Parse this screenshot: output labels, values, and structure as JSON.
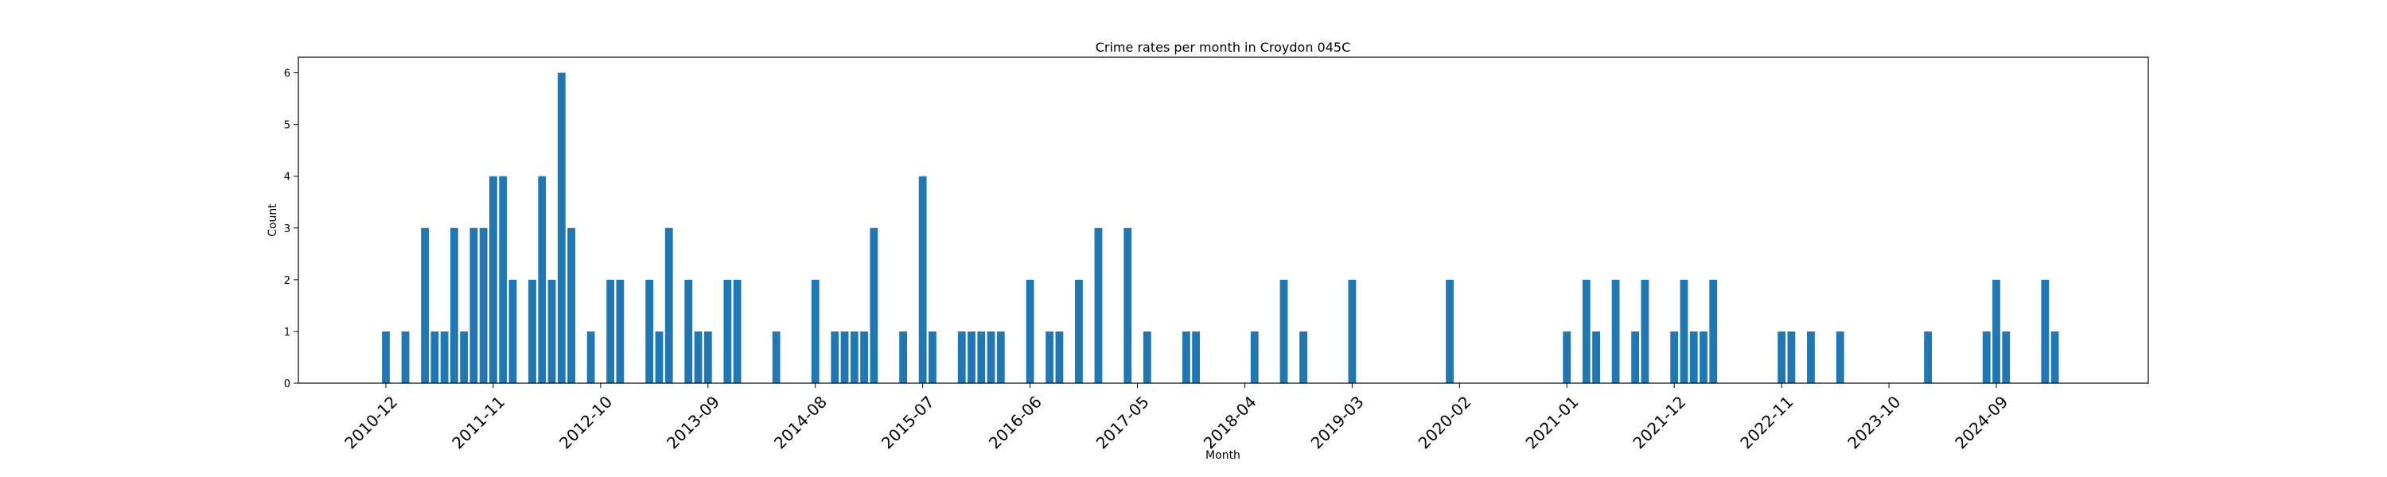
{
  "chart_data": {
    "type": "bar",
    "title": "Crime rates per month in Croydon 045C",
    "xlabel": "Month",
    "ylabel": "Count",
    "ylim": [
      0,
      6.3
    ],
    "y_ticks": [
      0,
      1,
      2,
      3,
      4,
      5,
      6
    ],
    "x_tick_labels": [
      "2010-12",
      "2011-11",
      "2012-10",
      "2013-09",
      "2014-08",
      "2015-07",
      "2016-06",
      "2017-05",
      "2018-04",
      "2019-03",
      "2020-02",
      "2021-01",
      "2021-12",
      "2022-11",
      "2023-10",
      "2024-09"
    ],
    "grid": false,
    "legend": "none",
    "bar_color": "#1f77b4",
    "categories": [
      "2010-12",
      "2011-02",
      "2011-04",
      "2011-05",
      "2011-06",
      "2011-07",
      "2011-08",
      "2011-09",
      "2011-10",
      "2011-11",
      "2011-12",
      "2012-01",
      "2012-03",
      "2012-04",
      "2012-05",
      "2012-06",
      "2012-07",
      "2012-09",
      "2012-11",
      "2012-12",
      "2013-03",
      "2013-04",
      "2013-05",
      "2013-07",
      "2013-08",
      "2013-09",
      "2013-11",
      "2013-12",
      "2014-04",
      "2014-08",
      "2014-10",
      "2014-11",
      "2014-12",
      "2015-01",
      "2015-02",
      "2015-05",
      "2015-07",
      "2015-08",
      "2015-11",
      "2015-12",
      "2016-01",
      "2016-02",
      "2016-03",
      "2016-06",
      "2016-08",
      "2016-09",
      "2016-11",
      "2017-01",
      "2017-04",
      "2017-06",
      "2017-10",
      "2017-11",
      "2018-05",
      "2018-08",
      "2018-10",
      "2019-03",
      "2020-01",
      "2021-01",
      "2021-03",
      "2021-04",
      "2021-06",
      "2021-08",
      "2021-09",
      "2021-12",
      "2022-01",
      "2022-02",
      "2022-03",
      "2022-04",
      "2022-11",
      "2022-12",
      "2023-02",
      "2023-05",
      "2024-02",
      "2024-08",
      "2024-09",
      "2024-10",
      "2025-02",
      "2025-03"
    ],
    "values": [
      1,
      1,
      3,
      1,
      1,
      3,
      1,
      3,
      3,
      4,
      4,
      2,
      2,
      4,
      2,
      6,
      3,
      1,
      2,
      2,
      2,
      1,
      3,
      2,
      1,
      1,
      2,
      2,
      1,
      2,
      1,
      1,
      1,
      1,
      3,
      1,
      4,
      1,
      1,
      1,
      1,
      1,
      1,
      2,
      1,
      1,
      2,
      3,
      3,
      1,
      1,
      1,
      1,
      2,
      1,
      2,
      2,
      1,
      2,
      1,
      2,
      1,
      2,
      1,
      2,
      1,
      1,
      2,
      1,
      1,
      1,
      1,
      1,
      1,
      2,
      1,
      2,
      1
    ]
  }
}
